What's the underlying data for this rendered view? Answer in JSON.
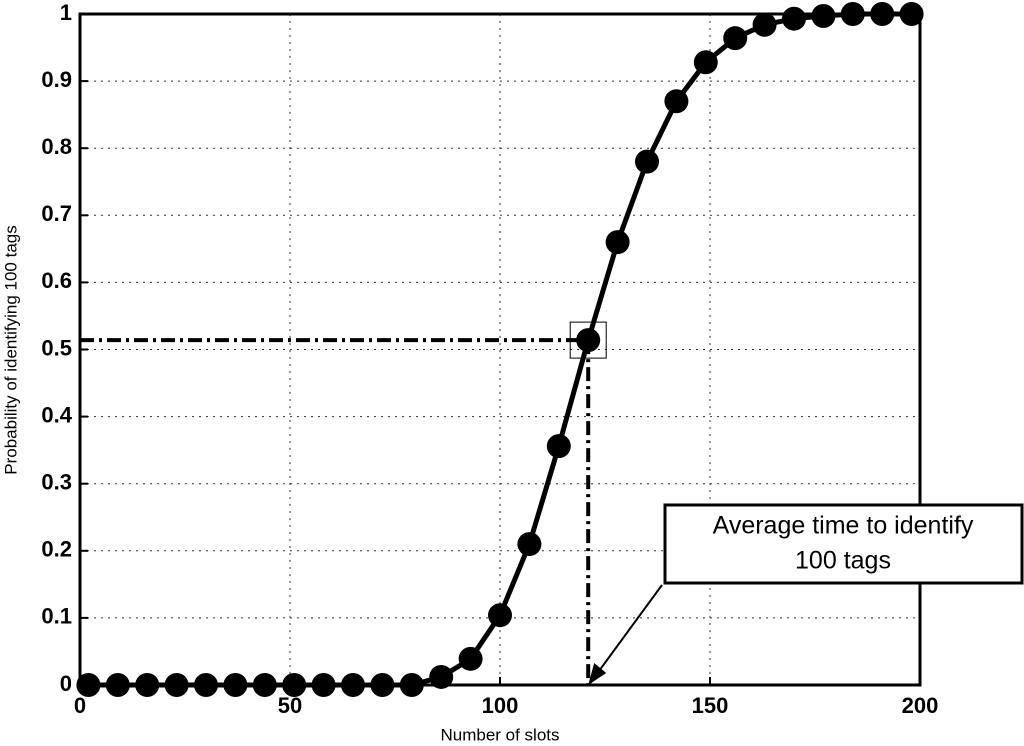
{
  "chart_data": {
    "type": "line",
    "xlabel": "Number of slots",
    "ylabel": "Probability of identifying 100 tags",
    "x": [
      2,
      9,
      16,
      23,
      30,
      37,
      44,
      51,
      58,
      65,
      72,
      79,
      86,
      93,
      100,
      107,
      114,
      121,
      128,
      135,
      142,
      149,
      156,
      163,
      170,
      177,
      184,
      191,
      198
    ],
    "series": [
      {
        "color": "#000000",
        "values": [
          0,
          0,
          0,
          0,
          0,
          0,
          0,
          0,
          0,
          0,
          0,
          0,
          0.012,
          0.039,
          0.104,
          0.21,
          0.356,
          0.514,
          0.66,
          0.78,
          0.87,
          0.928,
          0.964,
          0.984,
          0.993,
          0.997,
          1,
          1,
          1
        ]
      }
    ],
    "xlim": [
      0,
      200
    ],
    "xticks": [
      0,
      50,
      100,
      150,
      200
    ],
    "ylim": [
      0,
      1
    ],
    "yticks": [
      0,
      0.1,
      0.2,
      0.3,
      0.4,
      0.5,
      0.6,
      0.7,
      0.8,
      0.9,
      1
    ],
    "grid": true,
    "annotation": [
      "Average time to identify",
      "100 tags"
    ]
  }
}
